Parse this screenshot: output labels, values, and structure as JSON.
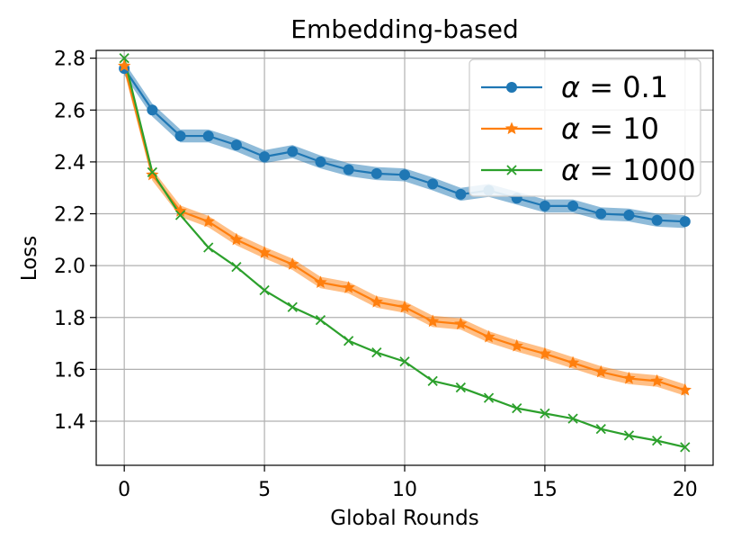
{
  "chart_data": {
    "type": "line",
    "title": "Embedding-based",
    "xlabel": "Global Rounds",
    "ylabel": "Loss",
    "xlim": [
      -1,
      21
    ],
    "ylim": [
      1.23,
      2.83
    ],
    "xticks": [
      0,
      5,
      10,
      15,
      20
    ],
    "xtick_labels": [
      "0",
      "5",
      "10",
      "15",
      "20"
    ],
    "yticks": [
      1.4,
      1.6,
      1.8,
      2.0,
      2.2,
      2.4,
      2.6,
      2.8
    ],
    "ytick_labels": [
      "1.4",
      "1.6",
      "1.8",
      "2.0",
      "2.2",
      "2.4",
      "2.6",
      "2.8"
    ],
    "grid": true,
    "legend_position": "top-right",
    "x": [
      0,
      1,
      2,
      3,
      4,
      5,
      6,
      7,
      8,
      9,
      10,
      11,
      12,
      13,
      14,
      15,
      16,
      17,
      18,
      19,
      20
    ],
    "series": [
      {
        "name": "α = 0.1",
        "legend_symbol": "α",
        "legend_value": "= 0.1",
        "color": "#1f77b4",
        "marker": "circle",
        "band": 0.025,
        "values": [
          2.76,
          2.6,
          2.5,
          2.5,
          2.465,
          2.42,
          2.44,
          2.4,
          2.37,
          2.355,
          2.35,
          2.315,
          2.275,
          2.29,
          2.26,
          2.23,
          2.23,
          2.2,
          2.195,
          2.175,
          2.17
        ]
      },
      {
        "name": "α = 10",
        "legend_symbol": "α",
        "legend_value": "= 10",
        "color": "#ff7f0e",
        "marker": "star",
        "band": 0.022,
        "values": [
          2.77,
          2.35,
          2.21,
          2.17,
          2.1,
          2.05,
          2.005,
          1.935,
          1.915,
          1.86,
          1.84,
          1.785,
          1.775,
          1.725,
          1.69,
          1.66,
          1.625,
          1.59,
          1.565,
          1.555,
          1.52
        ]
      },
      {
        "name": "α = 1000",
        "legend_symbol": "α",
        "legend_value": "= 1000",
        "color": "#2ca02c",
        "marker": "x",
        "band": 0,
        "values": [
          2.8,
          2.36,
          2.195,
          2.07,
          1.995,
          1.905,
          1.84,
          1.79,
          1.71,
          1.665,
          1.63,
          1.555,
          1.53,
          1.49,
          1.45,
          1.43,
          1.41,
          1.37,
          1.345,
          1.325,
          1.3
        ]
      }
    ]
  }
}
